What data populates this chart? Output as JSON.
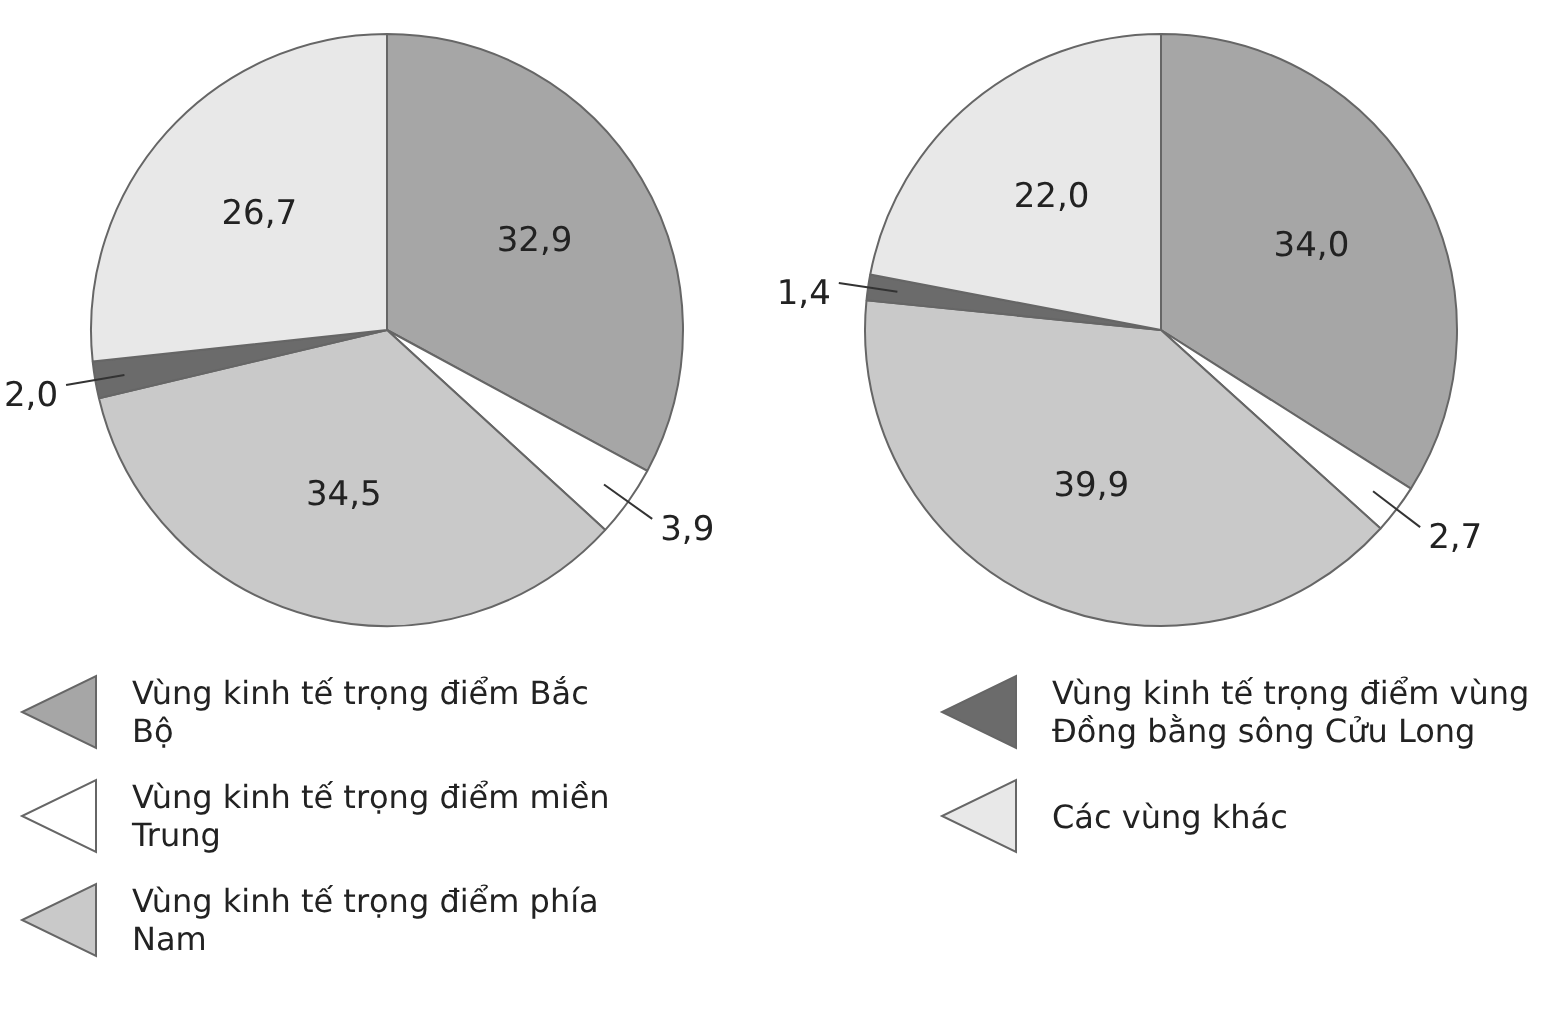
{
  "chart_data": [
    {
      "type": "pie",
      "categories": [
        "Vùng kinh tế trọng điểm Bắc Bộ",
        "Vùng kinh tế trọng điểm miền Trung",
        "Vùng kinh tế trọng điểm phía Nam",
        "Vùng kinh tế trọng điểm vùng Đồng bằng sông Cửu Long",
        "Các vùng khác"
      ],
      "values": [
        32.9,
        3.9,
        34.5,
        2.0,
        26.7
      ],
      "colors": [
        "#a6a6a6",
        "#ffffff",
        "#c9c9c9",
        "#6b6b6b",
        "#e8e8e8"
      ],
      "value_labels": [
        "32,9",
        "3,9",
        "34,5",
        "2,0",
        "26,7"
      ],
      "legend": "bottom"
    },
    {
      "type": "pie",
      "categories": [
        null,
        null,
        null,
        null,
        null
      ],
      "values": [
        34.0,
        2.7,
        39.9,
        1.4,
        22.0
      ],
      "colors": [
        "#a6a6a6",
        "#ffffff",
        "#c9c9c9",
        "#6b6b6b",
        "#e8e8e8"
      ],
      "value_labels": [
        "34,0",
        "2,7",
        "39,9",
        "1,4",
        "22,0"
      ]
    }
  ]
}
